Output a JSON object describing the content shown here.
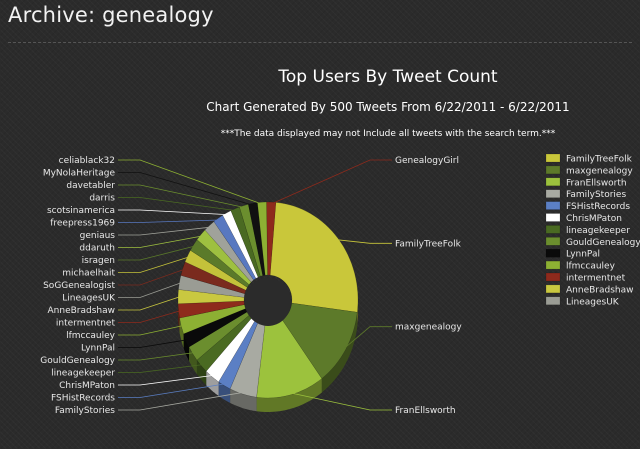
{
  "page": {
    "title": "Archive: genealogy"
  },
  "chart_data": {
    "type": "pie",
    "title": "Top Users By Tweet Count",
    "subtitle": "Chart Generated By 500 Tweets From 6/22/2011 - 6/22/2011",
    "note": "***The data displayed may not Include all tweets with the search term.***",
    "legend_position": "right",
    "slices": [
      {
        "label": "FamilyTreeFolk",
        "value": 22.0,
        "color": "#c9c73a"
      },
      {
        "label": "maxgenealogy",
        "value": 11.0,
        "color": "#5d7a2a"
      },
      {
        "label": "FranEllsworth",
        "value": 10.5,
        "color": "#9cc23d"
      },
      {
        "label": "FamilyStories",
        "value": 4.2,
        "color": "#a8aaa2"
      },
      {
        "label": "FSHistRecords",
        "value": 2.0,
        "color": "#5b7fc4"
      },
      {
        "label": "ChrisMPaton",
        "value": 2.4,
        "color": "#ffffff"
      },
      {
        "label": "lineagekeeper",
        "value": 2.1,
        "color": "#4a6a22"
      },
      {
        "label": "GouldGenealogy",
        "value": 2.2,
        "color": "#6b8e2e"
      },
      {
        "label": "LynnPal",
        "value": 2.0,
        "color": "#0a0a0a"
      },
      {
        "label": "lfmccauley",
        "value": 2.3,
        "color": "#8db033"
      },
      {
        "label": "intermentnet",
        "value": 2.0,
        "color": "#8e2a1c"
      },
      {
        "label": "AnneBradshaw",
        "value": 2.0,
        "color": "#c9c840"
      },
      {
        "label": "LineagesUK",
        "value": 2.0,
        "color": "#9a9c94"
      },
      {
        "label": "SoGGenealogist",
        "value": 2.0,
        "color": "#7a2a1e"
      },
      {
        "label": "michaelhait",
        "value": 1.8,
        "color": "#c4c23a"
      },
      {
        "label": "isragen",
        "value": 1.8,
        "color": "#5b7a2a"
      },
      {
        "label": "ddaruth",
        "value": 1.8,
        "color": "#9ec040"
      },
      {
        "label": "geniaus",
        "value": 1.8,
        "color": "#a0a29a"
      },
      {
        "label": "freepress1969",
        "value": 1.6,
        "color": "#5878c0"
      },
      {
        "label": "scotsinamerica",
        "value": 1.4,
        "color": "#ffffff"
      },
      {
        "label": "darris",
        "value": 1.4,
        "color": "#4a6a22"
      },
      {
        "label": "davetabler",
        "value": 1.4,
        "color": "#6b8e2e"
      },
      {
        "label": "MyNolaHeritage",
        "value": 1.4,
        "color": "#111111"
      },
      {
        "label": "celiablack32",
        "value": 1.4,
        "color": "#8db033"
      },
      {
        "label": "GenealogyGirl",
        "value": 1.4,
        "color": "#8e2a1c"
      }
    ],
    "legend": [
      {
        "label": "FamilyTreeFolk",
        "color": "#c9c73a"
      },
      {
        "label": "maxgenealogy",
        "color": "#5d7a2a"
      },
      {
        "label": "FranEllsworth",
        "color": "#9cc23d"
      },
      {
        "label": "FamilyStories",
        "color": "#a8aaa2"
      },
      {
        "label": "FSHistRecords",
        "color": "#5b7fc4"
      },
      {
        "label": "ChrisMPaton",
        "color": "#ffffff"
      },
      {
        "label": "lineagekeeper",
        "color": "#4a6a22"
      },
      {
        "label": "GouldGenealogy",
        "color": "#6b8e2e"
      },
      {
        "label": "LynnPal",
        "color": "#0a0a0a"
      },
      {
        "label": "lfmccauley",
        "color": "#8db033"
      },
      {
        "label": "intermentnet",
        "color": "#8e2a1c"
      },
      {
        "label": "AnneBradshaw",
        "color": "#c9c840"
      },
      {
        "label": "LineagesUK",
        "color": "#9a9c94"
      }
    ]
  }
}
